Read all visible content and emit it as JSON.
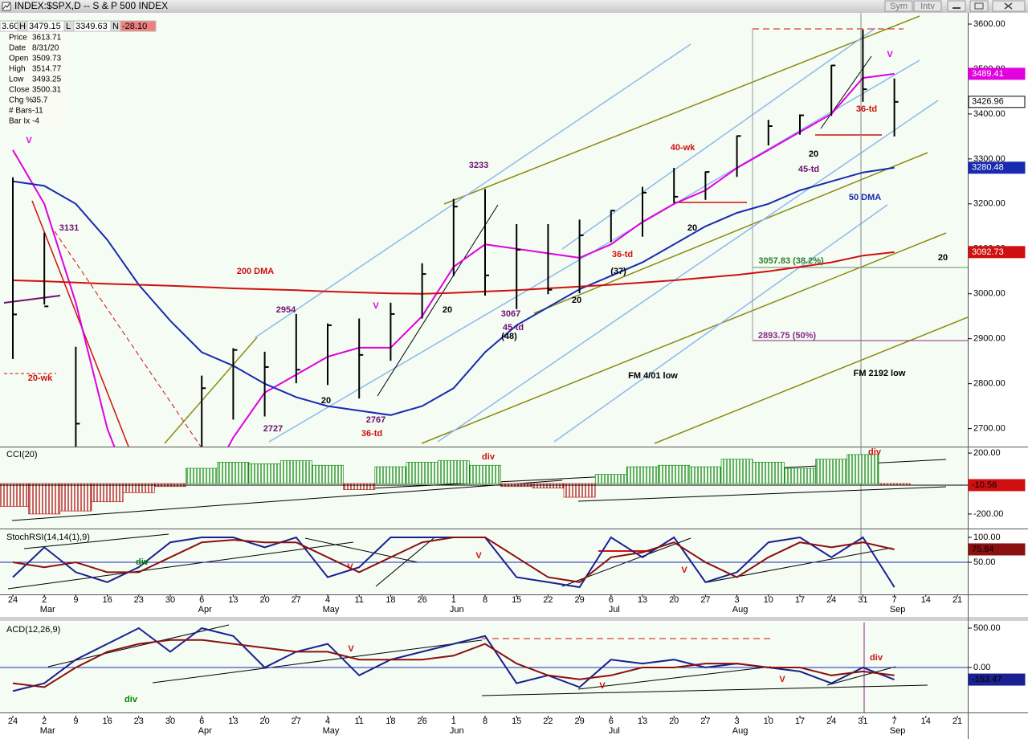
{
  "window": {
    "title": "INDEX:$SPX,D -- S & P 500 INDEX",
    "buttons": [
      "Sym",
      "Intv"
    ]
  },
  "info_bar": [
    "3.60",
    "H",
    "3479.15",
    "L",
    "3349.63",
    "N",
    "-28.10"
  ],
  "data_window": [
    {
      "label": "Price",
      "value": "3613.71"
    },
    {
      "label": "Date",
      "value": "8/31/20"
    },
    {
      "label": "Open",
      "value": "3509.73"
    },
    {
      "label": "High",
      "value": "3514.77"
    },
    {
      "label": "Low",
      "value": "3493.25"
    },
    {
      "label": "Close",
      "value": "3500.31"
    },
    {
      "label": "Chg %",
      "value": "35.7"
    },
    {
      "label": "# Bars",
      "value": "-11"
    },
    {
      "label": "Bar Ix",
      "value": "-4"
    }
  ],
  "chart_data": [
    {
      "type": "ohlc",
      "color": "#000000",
      "high": [
        3259,
        3136,
        2882,
        2562,
        2637,
        2641,
        2818,
        2879,
        2871,
        2955,
        2934,
        2945,
        2980,
        3068,
        3211,
        3233,
        3155,
        3155,
        3165,
        3186,
        3238,
        3280,
        3272,
        3352,
        3387,
        3399,
        3509,
        3588,
        3479,
        null,
        null
      ],
      "low": [
        2855,
        2976,
        2478,
        2280,
        2191,
        2447,
        2497,
        2720,
        2727,
        2801,
        2797,
        2767,
        2851,
        2945,
        3039,
        2996,
        2966,
        2999,
        3001,
        3115,
        3127,
        3202,
        3209,
        3260,
        3330,
        3354,
        3396,
        3427,
        3350,
        null,
        null
      ],
      "close": [
        2954,
        2972,
        2711,
        2305,
        2541,
        2489,
        2790,
        2875,
        2837,
        2831,
        2930,
        2864,
        2955,
        3044,
        3194,
        3041,
        3098,
        3009,
        3130,
        3185,
        3225,
        3216,
        3271,
        3351,
        3373,
        3397,
        3508,
        3455,
        3426.96,
        null,
        null
      ],
      "close_box": true,
      "overlays": [
        {
          "color": "#e000e0",
          "box": true,
          "values": [
            3320,
            3200,
            2980,
            2700,
            2520,
            2450,
            2550,
            2680,
            2780,
            2820,
            2860,
            2880,
            2880,
            2950,
            3060,
            3110,
            3100,
            3090,
            3080,
            3110,
            3160,
            3200,
            3230,
            3280,
            3320,
            3360,
            3400,
            3480,
            3489.41,
            null,
            null
          ]
        },
        {
          "color": "#1a2ab0",
          "box": true,
          "values": [
            3250,
            3240,
            3200,
            3120,
            3020,
            2940,
            2870,
            2840,
            2800,
            2770,
            2750,
            2740,
            2730,
            2750,
            2790,
            2870,
            2930,
            2970,
            3010,
            3040,
            3070,
            3110,
            3150,
            3180,
            3200,
            3230,
            3250,
            3270,
            3280.48,
            null,
            null
          ]
        },
        {
          "color": "#d01010",
          "box": true,
          "values": [
            3030,
            3028,
            3025,
            3022,
            3020,
            3018,
            3015,
            3012,
            3010,
            3008,
            3005,
            3003,
            3001,
            3000,
            3002,
            3005,
            3008,
            3012,
            3016,
            3020,
            3025,
            3030,
            3036,
            3042,
            3050,
            3060,
            3070,
            3085,
            3092.73,
            null,
            null
          ]
        }
      ],
      "ylim": [
        2660,
        3625
      ],
      "yticks": [
        {
          "value": 3600,
          "label": "3600.00"
        },
        {
          "value": 3500,
          "label": "3500.00"
        },
        {
          "value": 3400,
          "label": "3400.00"
        },
        {
          "value": 3300,
          "label": "3300.00"
        },
        {
          "value": 3200,
          "label": "3200.00"
        },
        {
          "value": 3100,
          "label": "3100.00"
        },
        {
          "value": 3000,
          "label": "3000.00"
        },
        {
          "value": 2900,
          "label": "2900.00"
        },
        {
          "value": 2800,
          "label": "2800.00"
        },
        {
          "value": 2700,
          "label": "2700.00"
        }
      ],
      "annotations": [
        {
          "text": "V",
          "color": "#e000e0"
        },
        {
          "text": "3131",
          "color": "#701070"
        },
        {
          "text": "200 DMA",
          "color": "#d01010"
        },
        {
          "text": "20-wk",
          "color": "#d01010"
        },
        {
          "text": "2954",
          "color": "#701070"
        },
        {
          "text": "20",
          "color": "#000000"
        },
        {
          "text": "2727",
          "color": "#701070"
        },
        {
          "text": "V",
          "color": "#e000e0"
        },
        {
          "text": "2767",
          "color": "#701070"
        },
        {
          "text": "36-td",
          "color": "#d01010"
        },
        {
          "text": "20",
          "color": "#000000"
        },
        {
          "text": "3233",
          "color": "#701070"
        },
        {
          "text": "3067",
          "color": "#701070"
        },
        {
          "text": "45-td",
          "color": "#701070"
        },
        {
          "text": "(48)",
          "color": "#000000"
        },
        {
          "text": "40-wk",
          "color": "#d01010"
        },
        {
          "text": "36-td",
          "color": "#d01010"
        },
        {
          "text": "(37)",
          "color": "#000000"
        },
        {
          "text": "20",
          "color": "#000000"
        },
        {
          "text": "20",
          "color": "#000000"
        },
        {
          "text": "20",
          "color": "#000000"
        },
        {
          "text": "45-td",
          "color": "#701070"
        },
        {
          "text": "50 DMA",
          "color": "#1a2ab0"
        },
        {
          "text": "36-td",
          "color": "#d01010"
        },
        {
          "text": "V",
          "color": "#e000e0"
        },
        {
          "text": "3057.83 (38.2%)",
          "color": "#2e7d2e"
        },
        {
          "text": "2893.75 (50%)",
          "color": "#8a2a8a"
        },
        {
          "text": "FM 4/01 low",
          "color": "#000000"
        },
        {
          "text": "FM 2192 low",
          "color": "#000000"
        },
        {
          "text": "20",
          "color": "#000000"
        }
      ]
    },
    {
      "type": "bar",
      "title": "CCI(20)",
      "colors": [
        "#008000",
        "#b00000"
      ],
      "values": [
        -150,
        -200,
        -180,
        -120,
        -60,
        -20,
        100,
        140,
        130,
        150,
        120,
        -40,
        110,
        140,
        150,
        120,
        -20,
        -30,
        -90,
        60,
        110,
        120,
        110,
        160,
        140,
        100,
        160,
        190,
        -10.56,
        null,
        null
      ],
      "box_color": "#d01010",
      "ylim": [
        -290,
        237
      ],
      "yticks": [
        {
          "value": 200,
          "label": "200.00"
        },
        {
          "value": -200,
          "label": "-200.00"
        }
      ],
      "annotations": [
        {
          "text": "div",
          "color": "#d01010"
        },
        {
          "text": "div",
          "color": "#d01010"
        }
      ]
    },
    {
      "type": "line",
      "title": "StochRSI(14,14(1),9)",
      "categories": [
        "24",
        "2",
        "9",
        "16",
        "23",
        "30",
        "6",
        "13",
        "20",
        "27",
        "4",
        "11",
        "18",
        "26",
        "1",
        "8",
        "15",
        "22",
        "29",
        "6",
        "13",
        "20",
        "27",
        "3",
        "10",
        "17",
        "24",
        "31",
        "7",
        "14",
        "21"
      ],
      "month_labels": [
        null,
        "Mar",
        null,
        null,
        null,
        null,
        "Apr",
        null,
        null,
        null,
        "May",
        null,
        null,
        null,
        "Jun",
        null,
        null,
        null,
        null,
        "Jul",
        null,
        null,
        null,
        "Aug",
        null,
        null,
        null,
        null,
        "Sep",
        null,
        null
      ],
      "series": [
        {
          "color": "#1a2090",
          "values": [
            20,
            80,
            30,
            10,
            40,
            90,
            100,
            100,
            80,
            100,
            20,
            40,
            100,
            100,
            100,
            100,
            20,
            10,
            0,
            100,
            60,
            100,
            10,
            30,
            90,
            100,
            60,
            100,
            0,
            null,
            null
          ]
        },
        {
          "color": "#8b1010",
          "box": true,
          "values": [
            50,
            40,
            50,
            30,
            30,
            60,
            90,
            95,
            90,
            90,
            60,
            30,
            60,
            90,
            100,
            100,
            60,
            20,
            10,
            60,
            70,
            90,
            50,
            20,
            60,
            90,
            80,
            90,
            75.84,
            null,
            null
          ]
        }
      ],
      "reference_lines": [
        50
      ],
      "ylim": [
        -14.5,
        114.5
      ],
      "yticks": [
        {
          "value": 100,
          "label": "100.00"
        },
        {
          "value": 50,
          "label": "50.00"
        }
      ],
      "annotations": [
        {
          "text": "div",
          "color": "#008000"
        },
        {
          "text": "V",
          "color": "#d01010"
        },
        {
          "text": "V",
          "color": "#d01010"
        },
        {
          "text": "V",
          "color": "#d01010"
        }
      ]
    },
    {
      "type": "line",
      "title": "ACD(12,26,9)",
      "categories": [
        "24",
        "2",
        "9",
        "16",
        "23",
        "30",
        "6",
        "13",
        "20",
        "27",
        "4",
        "11",
        "18",
        "26",
        "1",
        "8",
        "15",
        "22",
        "29",
        "6",
        "13",
        "20",
        "27",
        "3",
        "10",
        "17",
        "24",
        "31",
        "7",
        "14",
        "21"
      ],
      "month_labels": [
        null,
        "Mar",
        null,
        null,
        null,
        null,
        "Apr",
        null,
        null,
        null,
        "May",
        null,
        null,
        null,
        "Jun",
        null,
        null,
        null,
        null,
        "Jul",
        null,
        null,
        null,
        "Aug",
        null,
        null,
        null,
        null,
        "Sep",
        null,
        null
      ],
      "series": [
        {
          "color": "#1a2090",
          "box": true,
          "values": [
            -300,
            -200,
            100,
            300,
            500,
            200,
            500,
            400,
            0,
            200,
            300,
            -100,
            100,
            200,
            300,
            400,
            -200,
            -100,
            -250,
            100,
            50,
            100,
            0,
            50,
            0,
            -50,
            -200,
            0,
            -153.47,
            null,
            null
          ]
        },
        {
          "color": "#8b1010",
          "values": [
            -200,
            -250,
            0,
            200,
            300,
            350,
            350,
            300,
            250,
            200,
            200,
            100,
            100,
            100,
            150,
            300,
            50,
            -100,
            -150,
            -100,
            0,
            0,
            50,
            50,
            0,
            0,
            -100,
            -50,
            -100,
            null,
            null
          ]
        }
      ],
      "reference_lines": [
        0
      ],
      "ylim": [
        -571,
        571
      ],
      "yticks": [
        {
          "value": 500,
          "label": "500.00"
        },
        {
          "value": 0,
          "label": "0.00"
        }
      ],
      "annotations": [
        {
          "text": "V",
          "color": "#d01010"
        },
        {
          "text": "div",
          "color": "#008000"
        },
        {
          "text": "V",
          "color": "#d01010"
        },
        {
          "text": "V",
          "color": "#d01010"
        },
        {
          "text": "div",
          "color": "#d01010"
        }
      ]
    }
  ]
}
